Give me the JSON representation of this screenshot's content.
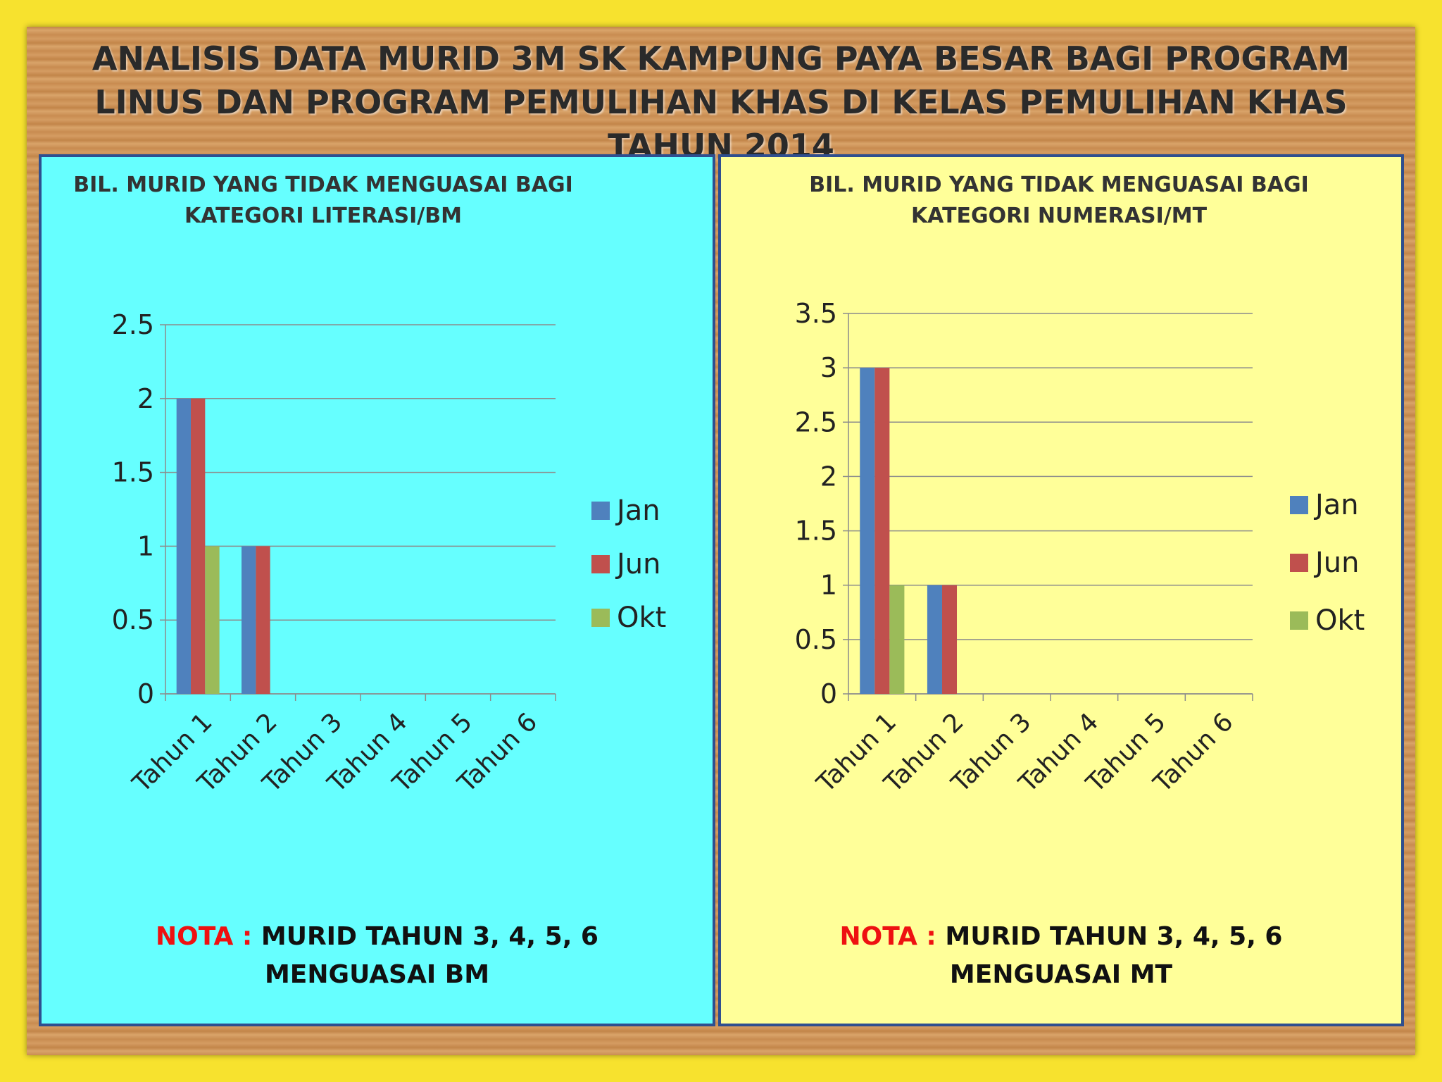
{
  "header": {
    "title": "ANALISIS DATA MURID 3M SK KAMPUNG PAYA BESAR BAGI PROGRAM LINUS DAN PROGRAM PEMULIHAN KHAS DI KELAS PEMULIHAN KHAS TAHUN 2014"
  },
  "chart_data": [
    {
      "type": "bar",
      "title": "BIL. MURID YANG TIDAK MENGUASAI BAGI KATEGORI LITERASI/BM",
      "categories": [
        "Tahun 1",
        "Tahun 2",
        "Tahun 3",
        "Tahun 4",
        "Tahun 5",
        "Tahun 6"
      ],
      "series": [
        {
          "name": "Jan",
          "color": "#4f81bd",
          "values": [
            2,
            1,
            0,
            0,
            0,
            0
          ]
        },
        {
          "name": "Jun",
          "color": "#c0504d",
          "values": [
            2,
            1,
            0,
            0,
            0,
            0
          ]
        },
        {
          "name": "Okt",
          "color": "#9bbb59",
          "values": [
            1,
            0,
            0,
            0,
            0,
            0
          ]
        }
      ],
      "ylim": [
        0,
        2.5
      ],
      "yticks": [
        0,
        0.5,
        1,
        1.5,
        2,
        2.5
      ],
      "grid": true,
      "legend": "right",
      "background": "#66ffff",
      "note_label": "NOTA :",
      "note": [
        "MURID TAHUN 3, 4, 5, 6",
        "MENGUASAI BM"
      ]
    },
    {
      "type": "bar",
      "title": "BIL. MURID YANG TIDAK MENGUASAI BAGI KATEGORI NUMERASI/MT",
      "categories": [
        "Tahun 1",
        "Tahun 2",
        "Tahun 3",
        "Tahun 4",
        "Tahun 5",
        "Tahun 6"
      ],
      "series": [
        {
          "name": "Jan",
          "color": "#4f81bd",
          "values": [
            3,
            1,
            0,
            0,
            0,
            0
          ]
        },
        {
          "name": "Jun",
          "color": "#c0504d",
          "values": [
            3,
            1,
            0,
            0,
            0,
            0
          ]
        },
        {
          "name": "Okt",
          "color": "#9bbb59",
          "values": [
            1,
            0,
            0,
            0,
            0,
            0
          ]
        }
      ],
      "ylim": [
        0,
        3.5
      ],
      "yticks": [
        0,
        0.5,
        1,
        1.5,
        2,
        2.5,
        3,
        3.5
      ],
      "grid": true,
      "legend": "right",
      "background": "#ffff99",
      "note_label": "NOTA :",
      "note": [
        "MURID TAHUN 3, 4, 5, 6",
        "MENGUASAI MT"
      ]
    }
  ]
}
